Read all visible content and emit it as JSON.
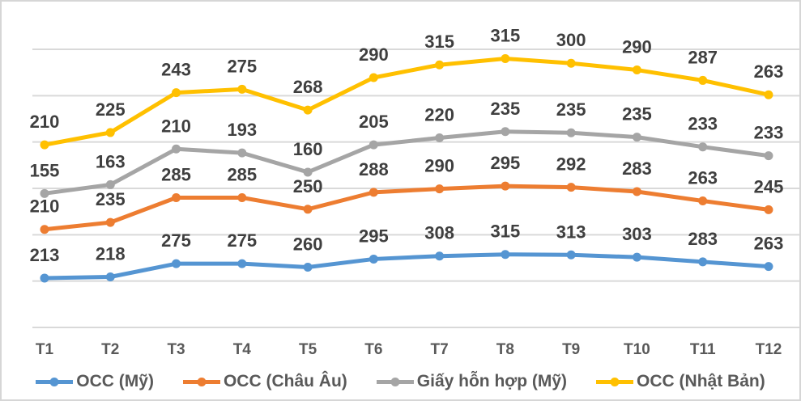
{
  "chart_data": {
    "type": "line",
    "stacked": true,
    "title": "",
    "xlabel": "",
    "ylabel": "",
    "categories": [
      "T1",
      "T2",
      "T3",
      "T4",
      "T5",
      "T6",
      "T7",
      "T8",
      "T9",
      "T10",
      "T11",
      "T12"
    ],
    "series": [
      {
        "name": "OCC (Mỹ)",
        "color": "#5595D2",
        "values": [
          213,
          218,
          275,
          275,
          260,
          295,
          308,
          315,
          313,
          303,
          283,
          263
        ]
      },
      {
        "name": "OCC (Châu Âu)",
        "color": "#ED7D31",
        "values": [
          210,
          235,
          285,
          285,
          250,
          288,
          290,
          295,
          292,
          283,
          263,
          245
        ]
      },
      {
        "name": "Giấy hỗn hợp (Mỹ)",
        "color": "#A5A5A5",
        "values": [
          155,
          163,
          210,
          193,
          160,
          205,
          220,
          235,
          235,
          235,
          233,
          233
        ]
      },
      {
        "name": "OCC (Nhật Bản)",
        "color": "#FFC000",
        "values": [
          210,
          225,
          243,
          275,
          268,
          290,
          315,
          315,
          300,
          290,
          287,
          263
        ]
      }
    ],
    "ylim": [
      0,
      1400
    ],
    "grid_interval": 200,
    "grid": "horizontal",
    "y_axis_labels_visible": false,
    "data_labels": true,
    "legend_position": "bottom",
    "marker": "circle"
  },
  "colors": {
    "background": "#FFFFFF",
    "frame_border": "#D6D6D6",
    "gridline": "#D9D9D9",
    "data_label_text": "#3F3F3F",
    "axis_tick_text": "#595959",
    "legend_text": "#595959"
  }
}
